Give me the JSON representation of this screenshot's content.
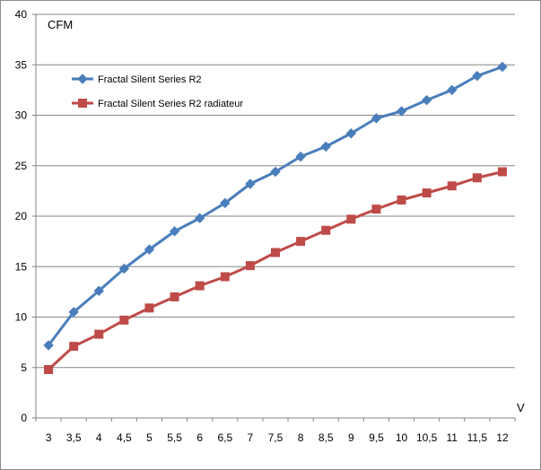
{
  "chart_data": {
    "type": "line",
    "title": "",
    "ylabel": "CFM",
    "xlabel": "V",
    "ylim": [
      0,
      40
    ],
    "yticks": [
      0,
      5,
      10,
      15,
      20,
      25,
      30,
      35,
      40
    ],
    "grid": true,
    "legend_position": "top-left",
    "categories": [
      "3",
      "3,5",
      "4",
      "4,5",
      "5",
      "5,5",
      "6",
      "6,5",
      "7",
      "7,5",
      "8",
      "8,5",
      "9",
      "9,5",
      "10",
      "10,5",
      "11",
      "11,5",
      "12"
    ],
    "series": [
      {
        "name": "Fractal Silent Series R2",
        "color": "#4a7ebb",
        "marker": "diamond",
        "values": [
          7.2,
          10.5,
          12.6,
          14.8,
          16.7,
          18.5,
          19.8,
          21.3,
          23.2,
          24.4,
          25.9,
          26.9,
          28.2,
          29.7,
          30.4,
          31.5,
          32.5,
          33.9,
          34.8
        ]
      },
      {
        "name": "Fractal Silent Series R2 radiateur",
        "color": "#be4b48",
        "marker": "square",
        "values": [
          4.8,
          7.1,
          8.3,
          9.7,
          10.9,
          12.0,
          13.1,
          14.0,
          15.1,
          16.4,
          17.5,
          18.6,
          19.7,
          20.7,
          21.6,
          22.3,
          23.0,
          23.8,
          24.4
        ]
      }
    ]
  }
}
